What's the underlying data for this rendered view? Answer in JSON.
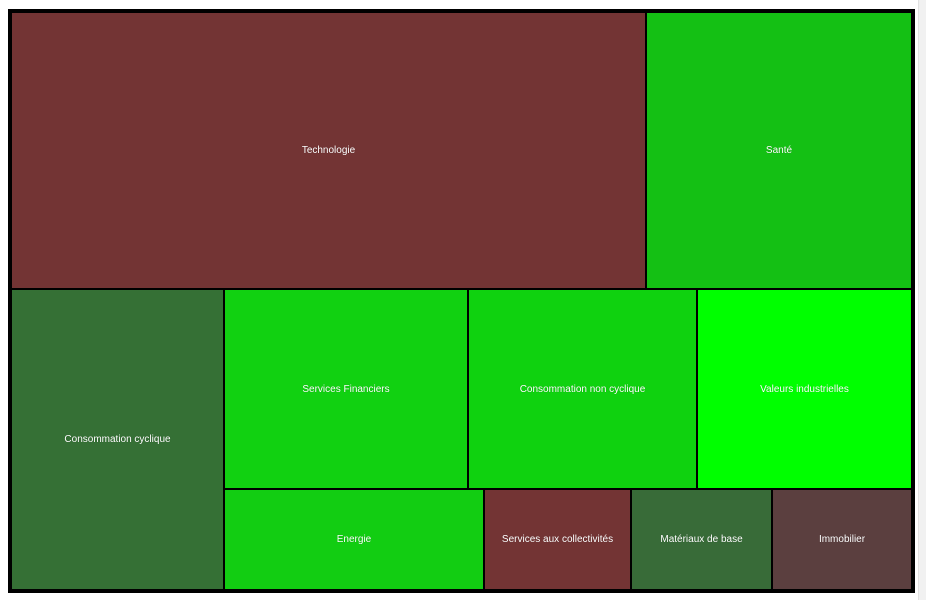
{
  "chart_data": {
    "type": "treemap",
    "title": "",
    "sectors": [
      {
        "label": "Technologie",
        "weight": 24.5,
        "color": "#733434"
      },
      {
        "label": "Santé",
        "weight": 10.3,
        "color": "#14c014"
      },
      {
        "label": "Consommation cyclique",
        "weight": 12.6,
        "color": "#357035"
      },
      {
        "label": "Services Financiers",
        "weight": 8.6,
        "color": "#11d111"
      },
      {
        "label": "Consommation non cyclique",
        "weight": 8.1,
        "color": "#0fd20f"
      },
      {
        "label": "Valeurs industrielles",
        "weight": 7.6,
        "color": "#00ff00"
      },
      {
        "label": "Energie",
        "weight": 5.1,
        "color": "#12cd12"
      },
      {
        "label": "Services aux collectivités",
        "weight": 2.9,
        "color": "#733434"
      },
      {
        "label": "Matériaux de base",
        "weight": 2.7,
        "color": "#386b38"
      },
      {
        "label": "Immobilier",
        "weight": 2.8,
        "color": "#5b3f3f"
      }
    ]
  }
}
